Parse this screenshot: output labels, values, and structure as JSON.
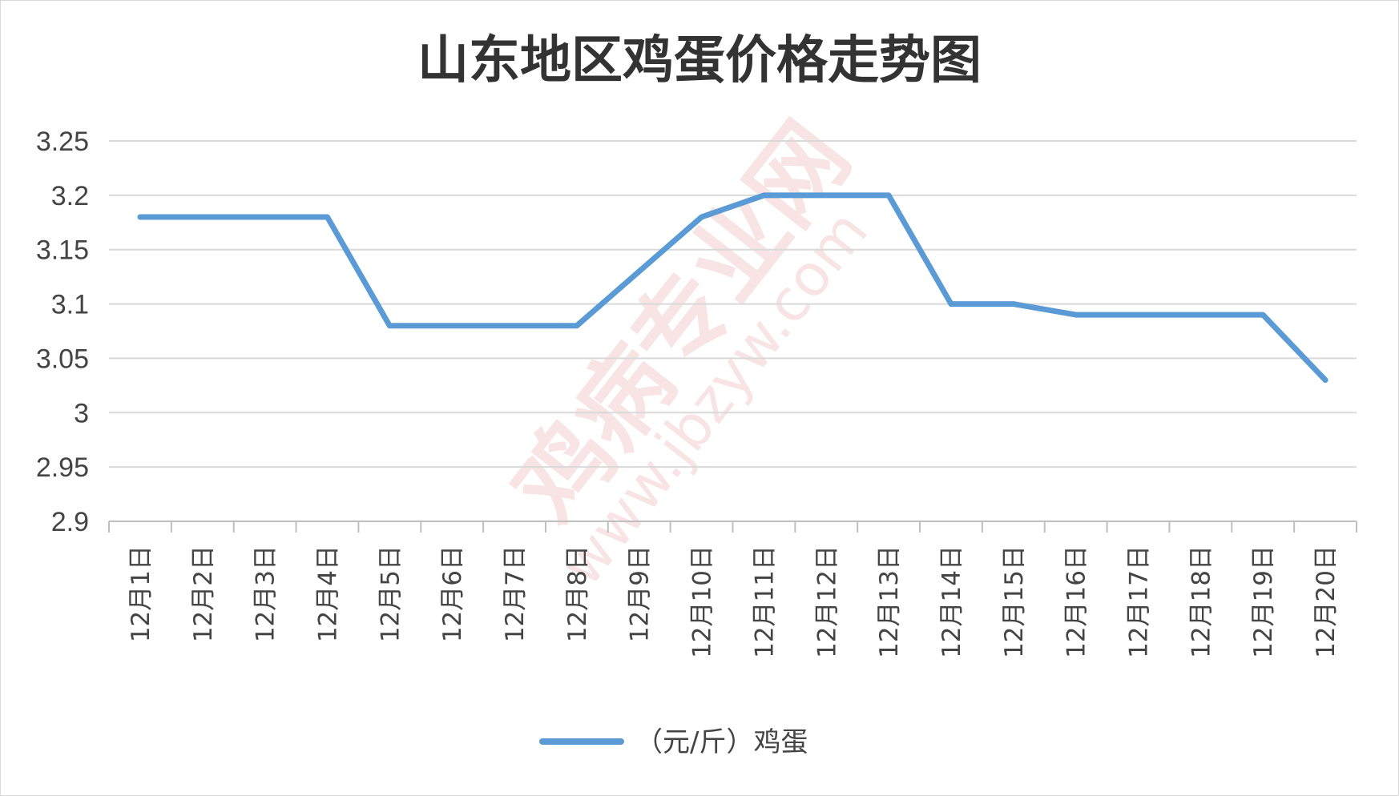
{
  "chart_data": {
    "type": "line",
    "title": "山东地区鸡蛋价格走势图",
    "xlabel": "",
    "ylabel": "",
    "categories": [
      "12月1日",
      "12月2日",
      "12月3日",
      "12月4日",
      "12月5日",
      "12月6日",
      "12月7日",
      "12月8日",
      "12月9日",
      "12月10日",
      "12月11日",
      "12月12日",
      "12月13日",
      "12月14日",
      "12月15日",
      "12月16日",
      "12月17日",
      "12月18日",
      "12月19日",
      "12月20日"
    ],
    "series": [
      {
        "name": "（元/斤）鸡蛋",
        "color": "#5b9bd5",
        "values": [
          3.18,
          3.18,
          3.18,
          3.18,
          3.08,
          3.08,
          3.08,
          3.08,
          3.13,
          3.18,
          3.2,
          3.2,
          3.2,
          3.1,
          3.1,
          3.09,
          3.09,
          3.09,
          3.09,
          3.03
        ]
      }
    ],
    "ylim": [
      2.9,
      3.25
    ],
    "yticks": [
      "2.9",
      "2.95",
      "3",
      "3.05",
      "3.1",
      "3.15",
      "3.2",
      "3.25"
    ],
    "grid": true,
    "legend_position": "bottom"
  },
  "watermark": {
    "text": "鸡病专业网",
    "url": "www.jbzyw.com"
  }
}
